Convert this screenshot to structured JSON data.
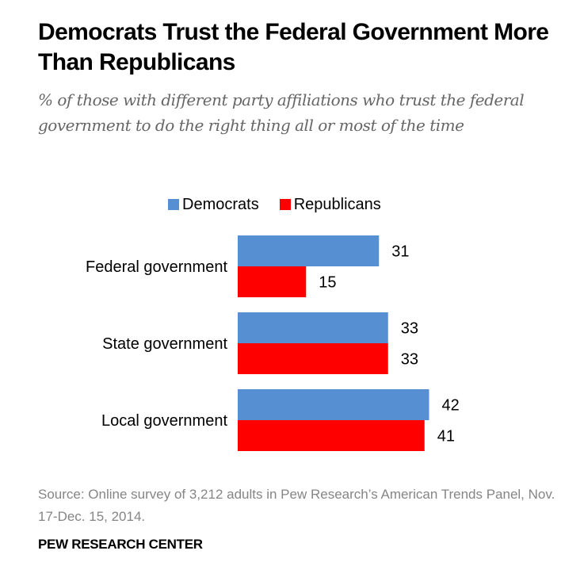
{
  "header": {
    "title": "Democrats Trust the Federal Government More Than Republicans",
    "subtitle": "% of those with different party affiliations who trust the federal government to do the right thing all or most of the time"
  },
  "chart_data": {
    "type": "bar",
    "orientation": "horizontal",
    "title": "Democrats Trust the Federal Government More Than Republicans",
    "subtitle": "% of those with different party affiliations who trust the federal government to do the right thing all or most of the time",
    "categories": [
      "Federal government",
      "State government",
      "Local government"
    ],
    "series": [
      {
        "name": "Democrats",
        "color": "#578fd3",
        "values": [
          31,
          33,
          42
        ]
      },
      {
        "name": "Republicans",
        "color": "#ff0000",
        "values": [
          15,
          33,
          41
        ]
      }
    ],
    "xlabel": "",
    "ylabel": "",
    "xlim": [
      0,
      100
    ],
    "grid": false,
    "legend_position": "top",
    "data_labels": true
  },
  "legend": [
    {
      "label": "Democrats",
      "color": "#578fd3"
    },
    {
      "label": "Republicans",
      "color": "#ff0000"
    }
  ],
  "footer": {
    "source": "Source: Online survey of 3,212 adults in Pew Research’s American Trends Panel, Nov. 17-Dec. 15, 2014.",
    "brand": "PEW RESEARCH CENTER"
  }
}
